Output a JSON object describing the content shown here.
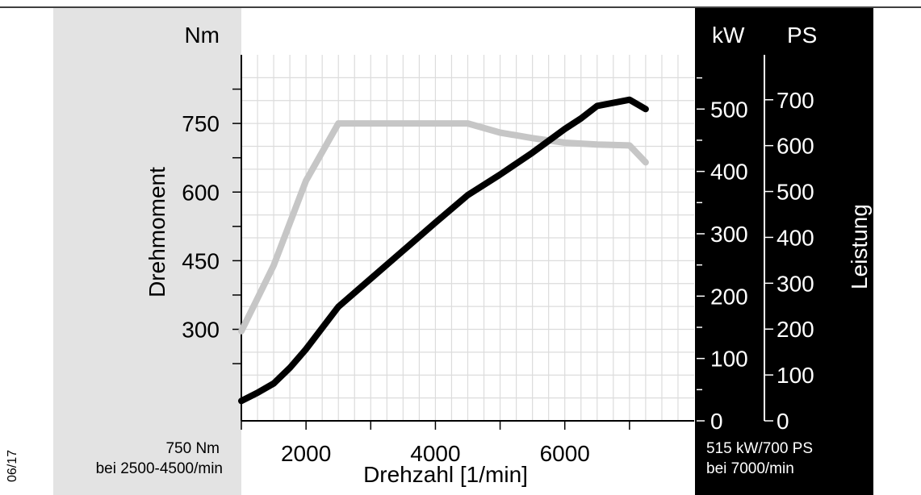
{
  "page": {
    "code": "06/17"
  },
  "chart_data": {
    "type": "line",
    "x_axis": {
      "label": "Drehzahl [1/min]",
      "range": [
        1000,
        8000
      ],
      "ticks": [
        2000,
        4000,
        6000
      ],
      "tick_labels": [
        "2000",
        "4000",
        "6000"
      ],
      "minor_ticks": [
        1000,
        3000,
        5000,
        7000
      ]
    },
    "y_axis_left": {
      "label": "Drehmoment",
      "unit": "Nm",
      "range": [
        100,
        900
      ],
      "ticks": [
        300,
        450,
        600,
        750
      ],
      "tick_labels": [
        "300",
        "450",
        "600",
        "750"
      ]
    },
    "y_axis_kw": {
      "unit": "kW",
      "range": [
        0,
        587
      ],
      "ticks": [
        0,
        100,
        200,
        300,
        400,
        500
      ],
      "tick_labels": [
        "0",
        "100",
        "200",
        "300",
        "400",
        "500"
      ]
    },
    "y_axis_ps": {
      "label": "Leistung",
      "unit": "PS",
      "range": [
        0,
        798
      ],
      "ticks": [
        0,
        100,
        200,
        300,
        400,
        500,
        600,
        700
      ],
      "tick_labels": [
        "0",
        "100",
        "200",
        "300",
        "400",
        "500",
        "600",
        "700"
      ]
    },
    "grid": true,
    "series": [
      {
        "axis": "left",
        "color": "#c6c6c6",
        "x": [
          1000,
          1500,
          2000,
          2300,
          2500,
          3000,
          3500,
          4000,
          4500,
          5000,
          5500,
          6000,
          6500,
          7000,
          7250
        ],
        "y": [
          296,
          440,
          625,
          700,
          750,
          750,
          750,
          750,
          750,
          730,
          718,
          708,
          704,
          702,
          665
        ]
      },
      {
        "axis": "kw",
        "color": "#000000",
        "x": [
          1000,
          1250,
          1500,
          1750,
          2000,
          2500,
          3000,
          3500,
          4000,
          4500,
          5000,
          5500,
          6000,
          6250,
          6500,
          7000,
          7250
        ],
        "y": [
          32,
          45,
          60,
          85,
          115,
          183,
          228,
          273,
          318,
          362,
          395,
          430,
          468,
          485,
          505,
          515,
          500
        ]
      }
    ],
    "annotations": {
      "torque_max": "750 Nm",
      "torque_range": "bei 2500-4500/min",
      "power_max": "515 kW/700 PS",
      "power_rpm": "bei 7000/min"
    }
  }
}
